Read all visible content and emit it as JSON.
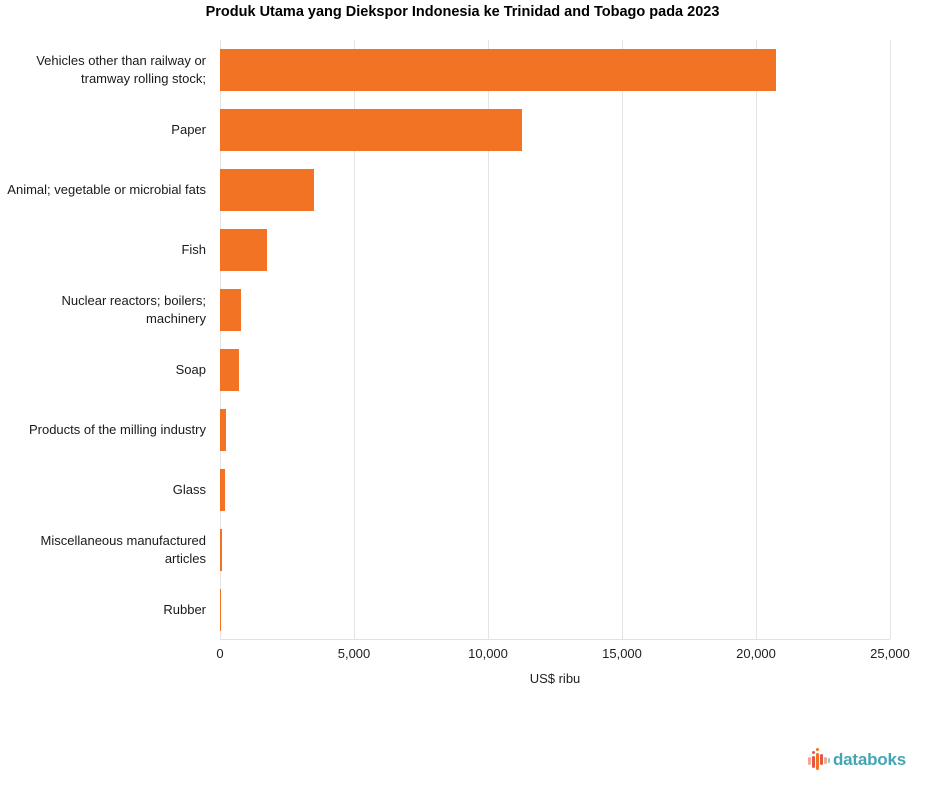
{
  "title": "Produk Utama yang Diekspor Indonesia ke Trinidad and Tobago pada 2023",
  "chart_data": {
    "type": "bar",
    "orientation": "horizontal",
    "title": "Produk Utama yang Diekspor Indonesia ke Trinidad and Tobago pada 2023",
    "categories": [
      "Vehicles other than railway or tramway rolling stock;",
      "Paper",
      "Animal; vegetable or microbial fats",
      "Fish",
      "Nuclear reactors; boilers; machinery",
      "Soap",
      "Products of the milling industry",
      "Glass",
      "Miscellaneous manufactured articles",
      "Rubber"
    ],
    "values": [
      20750,
      11250,
      3500,
      1750,
      800,
      720,
      220,
      190,
      80,
      50
    ],
    "xlabel": "US$ ribu",
    "ylabel": "",
    "xlim": [
      0,
      25000
    ],
    "xticks": [
      0,
      5000,
      10000,
      15000,
      20000,
      25000
    ],
    "xtick_labels": [
      "0",
      "5,000",
      "10,000",
      "15,000",
      "20,000",
      "25,000"
    ],
    "grid": true,
    "legend": "none",
    "bar_color": "#f37324"
  },
  "branding": {
    "logo_text": "databoks",
    "logo_text_color": "#45a5b5",
    "icon": "bar-sparkline-icon",
    "icon_colors": {
      "salmon": "#f2a98d",
      "red": "#e2574c",
      "orange": "#f37324",
      "teal": "#7fcfd4"
    }
  }
}
